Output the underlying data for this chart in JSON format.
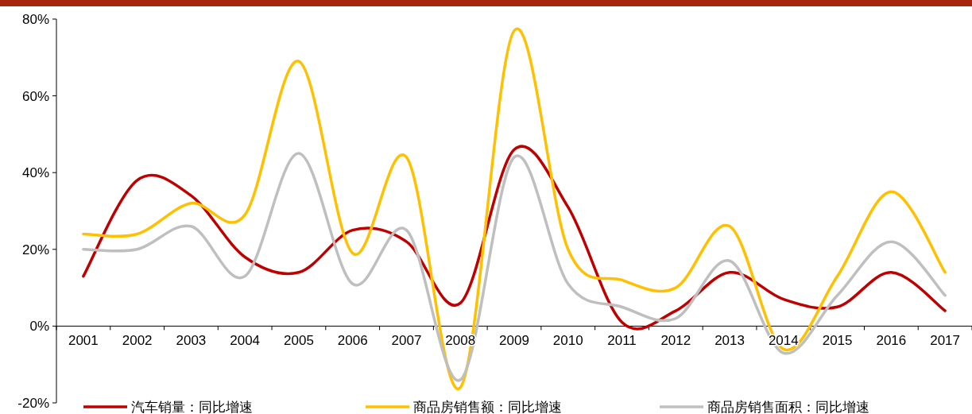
{
  "chart_data": {
    "type": "line",
    "categories": [
      "2001",
      "2002",
      "2003",
      "2004",
      "2005",
      "2006",
      "2007",
      "2008",
      "2009",
      "2010",
      "2011",
      "2012",
      "2013",
      "2014",
      "2015",
      "2016",
      "2017"
    ],
    "series": [
      {
        "name": "汽车销量：同比增速",
        "color": "#c00000",
        "values": [
          13,
          38,
          34,
          18,
          14,
          25,
          22,
          6,
          46,
          31,
          1,
          4,
          14,
          7,
          5,
          14,
          4
        ]
      },
      {
        "name": "商品房销售额：同比增速",
        "color": "#ffc000",
        "values": [
          24,
          24,
          32,
          29,
          69,
          19,
          44,
          -16,
          77,
          20,
          12,
          10,
          26,
          -6,
          13,
          35,
          14
        ]
      },
      {
        "name": "商品房销售面积：同比增速",
        "color": "#bfbfbf",
        "values": [
          20,
          20,
          26,
          13,
          45,
          11,
          25,
          -14,
          44,
          11,
          5,
          2,
          17,
          -7,
          8,
          22,
          8
        ]
      }
    ],
    "ylim": [
      -20,
      80
    ],
    "yticks": [
      {
        "value": -20,
        "label": "-20%"
      },
      {
        "value": 0,
        "label": "0%"
      },
      {
        "value": 20,
        "label": "20%"
      },
      {
        "value": 40,
        "label": "40%"
      },
      {
        "value": 60,
        "label": "60%"
      },
      {
        "value": 80,
        "label": "80%"
      }
    ],
    "legend": "bottom"
  }
}
